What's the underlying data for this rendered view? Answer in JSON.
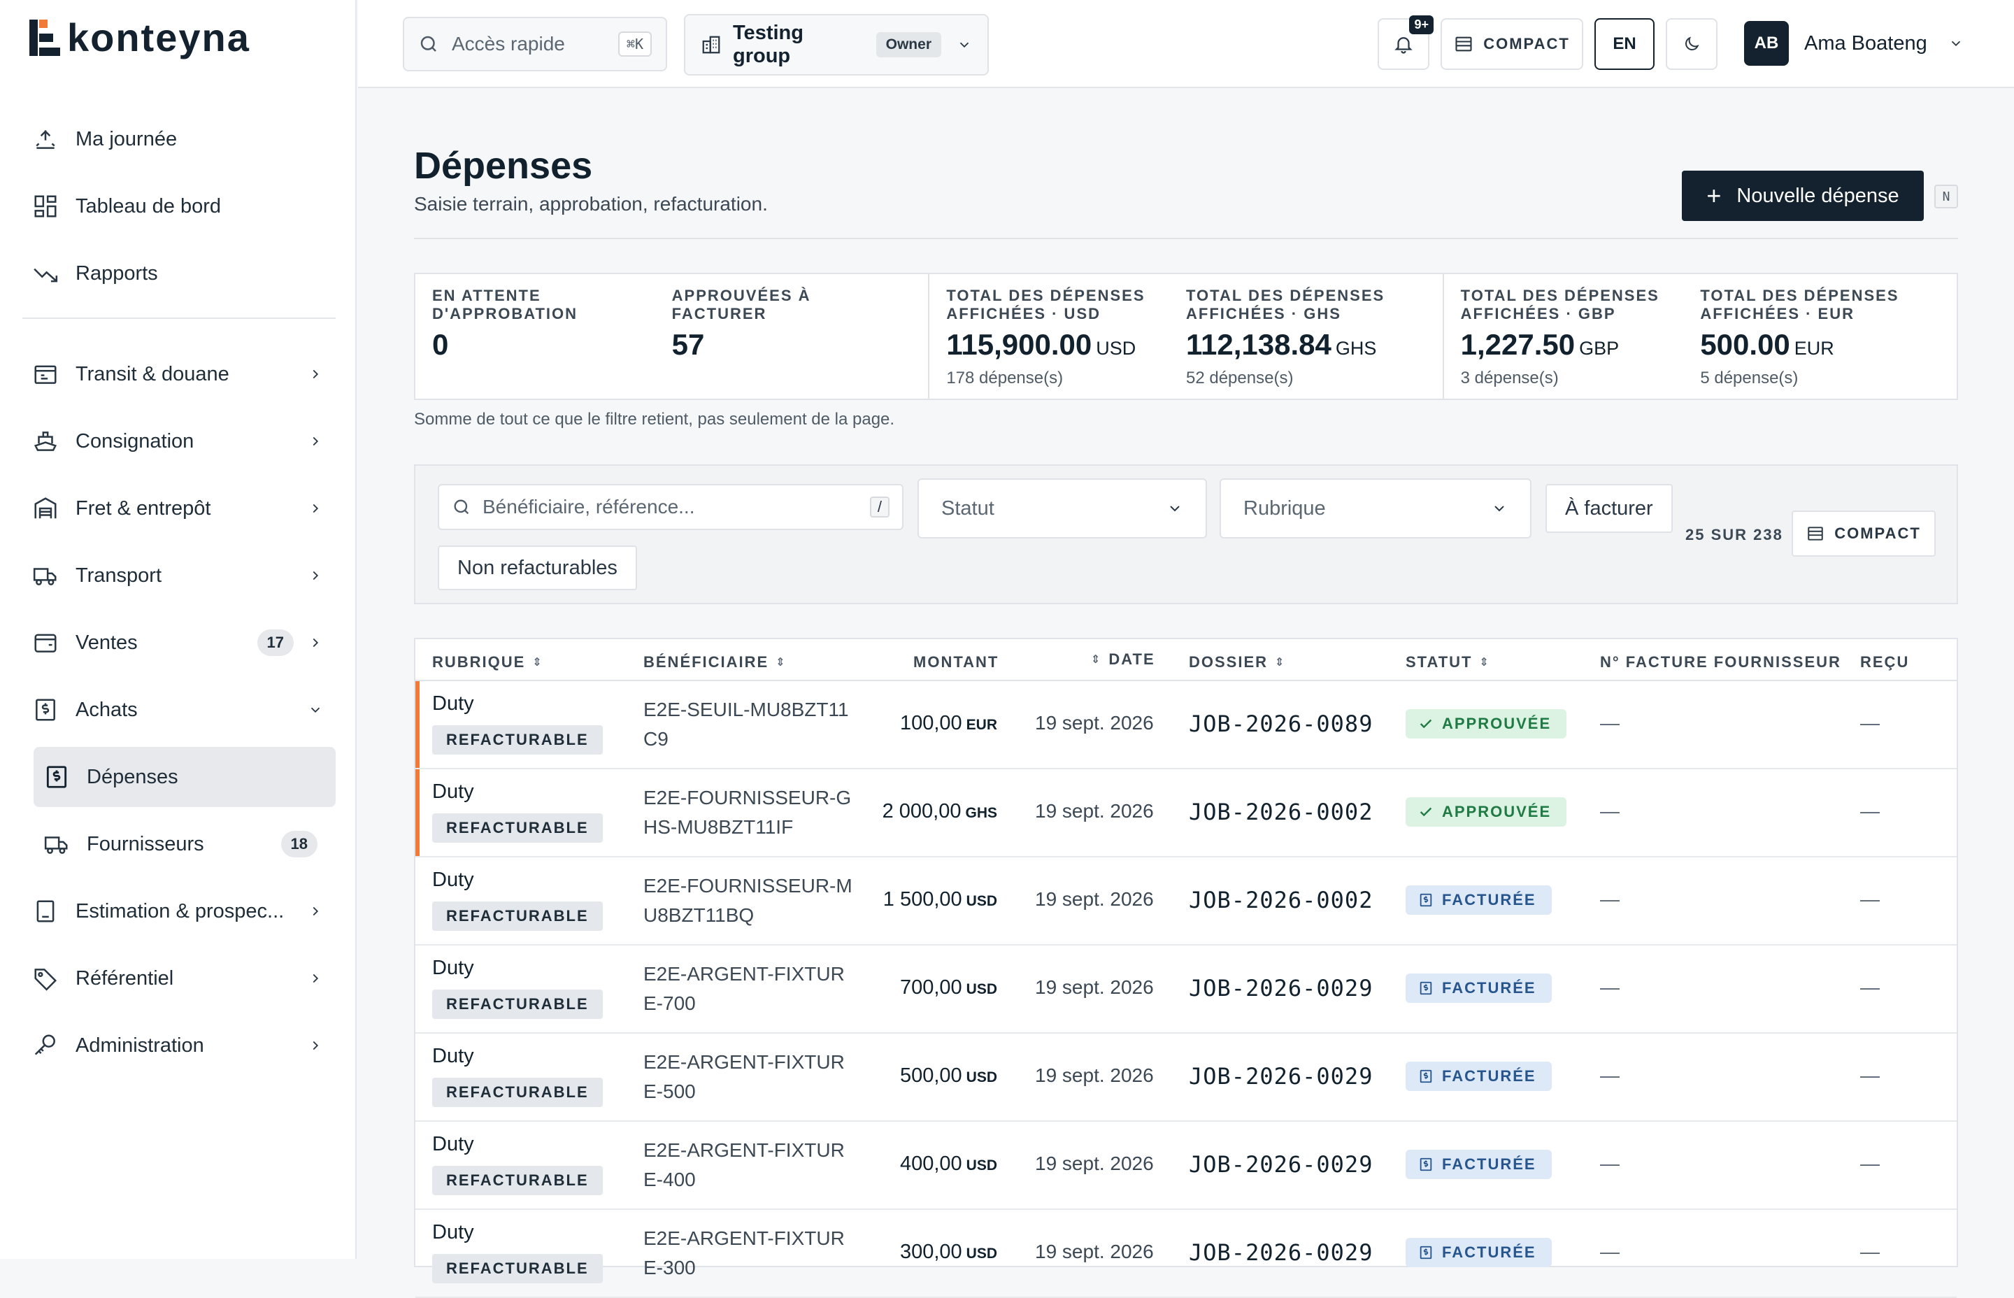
{
  "app": {
    "name": "konteyna"
  },
  "sidebar": {
    "items_top": [
      {
        "label": "Ma journée",
        "icon": "day-icon"
      },
      {
        "label": "Tableau de bord",
        "icon": "dashboard-icon"
      },
      {
        "label": "Rapports",
        "icon": "trend-icon"
      }
    ],
    "items_main": [
      {
        "label": "Transit & douane",
        "icon": "customs-icon",
        "badge": ""
      },
      {
        "label": "Consignation",
        "icon": "ship-icon",
        "badge": ""
      },
      {
        "label": "Fret & entrepôt",
        "icon": "warehouse-icon",
        "badge": ""
      },
      {
        "label": "Transport",
        "icon": "truck-icon",
        "badge": ""
      },
      {
        "label": "Ventes",
        "icon": "sales-icon",
        "badge": "17"
      },
      {
        "label": "Achats",
        "icon": "purchase-icon",
        "badge": ""
      }
    ],
    "sub_items": [
      {
        "label": "Dépenses",
        "icon": "expense-icon",
        "badge": ""
      },
      {
        "label": "Fournisseurs",
        "icon": "supplier-icon",
        "badge": "18"
      }
    ],
    "items_bottom": [
      {
        "label": "Estimation & prospec...",
        "icon": "estimate-icon"
      },
      {
        "label": "Référentiel",
        "icon": "tag-icon"
      },
      {
        "label": "Administration",
        "icon": "key-icon"
      }
    ]
  },
  "topbar": {
    "quick_access": "Accès rapide",
    "quick_kbd": "⌘K",
    "group_name": "Testing group",
    "group_role": "Owner",
    "notif_badge": "9+",
    "compact_label": "COMPACT",
    "lang": "EN",
    "user_initials": "AB",
    "user_name": "Ama Boateng"
  },
  "page": {
    "title": "Dépenses",
    "subtitle": "Saisie terrain, approbation, refacturation.",
    "new_button": "Nouvelle dépense",
    "new_kbd": "N"
  },
  "kpis": {
    "pending_label": "EN ATTENTE D'APPROBATION",
    "pending_value": "0",
    "approved_label": "APPROUVÉES À FACTURER",
    "approved_value": "57",
    "totals": [
      {
        "label": "TOTAL DES DÉPENSES AFFICHÉES · USD",
        "value": "115,900.00",
        "currency": "USD",
        "count": "178 dépense(s)"
      },
      {
        "label": "TOTAL DES DÉPENSES AFFICHÉES · GHS",
        "value": "112,138.84",
        "currency": "GHS",
        "count": "52 dépense(s)"
      },
      {
        "label": "TOTAL DES DÉPENSES AFFICHÉES · GBP",
        "value": "1,227.50",
        "currency": "GBP",
        "count": "3 dépense(s)"
      },
      {
        "label": "TOTAL DES DÉPENSES AFFICHÉES · EUR",
        "value": "500.00",
        "currency": "EUR",
        "count": "5 dépense(s)"
      }
    ],
    "note": "Somme de tout ce que le filtre retient, pas seulement de la page."
  },
  "filters": {
    "search_placeholder": "Bénéficiaire, référence...",
    "search_kbd": "/",
    "status": "Statut",
    "category": "Rubrique",
    "to_bill": "À facturer",
    "non_billable": "Non refacturables",
    "count": "25 SUR 238",
    "compact": "COMPACT"
  },
  "table": {
    "headers": {
      "rubrique": "RUBRIQUE",
      "beneficiaire": "BÉNÉFICIAIRE",
      "montant": "MONTANT",
      "date": "DATE",
      "dossier": "DOSSIER",
      "statut": "STATUT",
      "facture": "N° FACTURE FOURNISSEUR",
      "recu": "REÇU"
    },
    "rows": [
      {
        "rubrique": "Duty",
        "tag": "REFACTURABLE",
        "beneficiaire": "E2E-SEUIL-MU8BZT11C9",
        "amount": "100,00",
        "currency": "EUR",
        "date": "19 sept. 2026",
        "dossier": "JOB-2026-0089",
        "status": "APPROUVÉE",
        "status_kind": "approved",
        "invoice": "—",
        "receipt": "—",
        "flag": true
      },
      {
        "rubrique": "Duty",
        "tag": "REFACTURABLE",
        "beneficiaire": "E2E-FOURNISSEUR-GHS-MU8BZT11IF",
        "amount": "2 000,00",
        "currency": "GHS",
        "date": "19 sept. 2026",
        "dossier": "JOB-2026-0002",
        "status": "APPROUVÉE",
        "status_kind": "approved",
        "invoice": "—",
        "receipt": "—",
        "flag": true
      },
      {
        "rubrique": "Duty",
        "tag": "REFACTURABLE",
        "beneficiaire": "E2E-FOURNISSEUR-MU8BZT11BQ",
        "amount": "1 500,00",
        "currency": "USD",
        "date": "19 sept. 2026",
        "dossier": "JOB-2026-0002",
        "status": "FACTURÉE",
        "status_kind": "billed",
        "invoice": "—",
        "receipt": "—",
        "flag": false
      },
      {
        "rubrique": "Duty",
        "tag": "REFACTURABLE",
        "beneficiaire": "E2E-ARGENT-FIXTURE-700",
        "amount": "700,00",
        "currency": "USD",
        "date": "19 sept. 2026",
        "dossier": "JOB-2026-0029",
        "status": "FACTURÉE",
        "status_kind": "billed",
        "invoice": "—",
        "receipt": "—",
        "flag": false
      },
      {
        "rubrique": "Duty",
        "tag": "REFACTURABLE",
        "beneficiaire": "E2E-ARGENT-FIXTURE-500",
        "amount": "500,00",
        "currency": "USD",
        "date": "19 sept. 2026",
        "dossier": "JOB-2026-0029",
        "status": "FACTURÉE",
        "status_kind": "billed",
        "invoice": "—",
        "receipt": "—",
        "flag": false
      },
      {
        "rubrique": "Duty",
        "tag": "REFACTURABLE",
        "beneficiaire": "E2E-ARGENT-FIXTURE-400",
        "amount": "400,00",
        "currency": "USD",
        "date": "19 sept. 2026",
        "dossier": "JOB-2026-0029",
        "status": "FACTURÉE",
        "status_kind": "billed",
        "invoice": "—",
        "receipt": "—",
        "flag": false
      },
      {
        "rubrique": "Duty",
        "tag": "REFACTURABLE",
        "beneficiaire": "E2E-ARGENT-FIXTURE-300",
        "amount": "300,00",
        "currency": "USD",
        "date": "19 sept. 2026",
        "dossier": "JOB-2026-0029",
        "status": "FACTURÉE",
        "status_kind": "billed",
        "invoice": "—",
        "receipt": "—",
        "flag": false
      }
    ]
  },
  "colors": {
    "brand": "#13222e",
    "accent_flag": "#f07a38",
    "approved": "#1f7a44",
    "billed": "#27558e"
  }
}
